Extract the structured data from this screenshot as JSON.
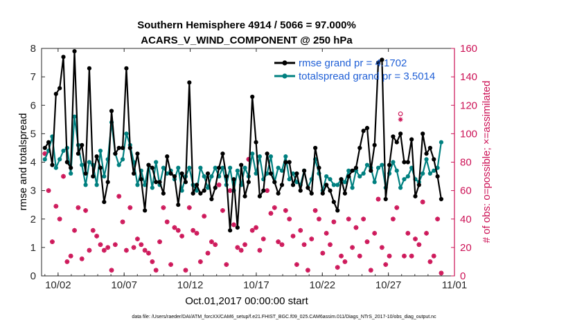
{
  "chart_data": {
    "type": "line",
    "title": "Southern Hemisphere 4914 / 5066 = 97.000%",
    "subtitle": "ACARS_V_WIND_COMPONENT @ 250 hPa",
    "xlabel": "Oct.01,2017 00:00:00 start",
    "ylabel_left": "rmse and totalspread",
    "ylabel_right": "# of obs: o=possible; ×=assimilated",
    "footnote": "data file: /Users/raeder/DAI/ATM_forcXX/CAM6_setup/f.e21.FHIST_BGC.f09_025.CAM6assim.011/Diags_NTrS_2017-10/obs_diag_output.nc",
    "x_tick_labels": [
      "10/02",
      "10/07",
      "10/12",
      "10/17",
      "10/22",
      "10/27",
      "11/01"
    ],
    "x_tick_values": [
      2,
      7,
      12,
      17,
      22,
      27,
      32
    ],
    "xlim": [
      0.75,
      32
    ],
    "ylim_left": [
      0,
      8
    ],
    "ylim_right": [
      0,
      160
    ],
    "y_ticks_left": [
      "0",
      "1",
      "2",
      "3",
      "4",
      "5",
      "6",
      "7",
      "8"
    ],
    "y_ticks_right": [
      "0",
      "20",
      "40",
      "60",
      "80",
      "100",
      "120",
      "140",
      "160"
    ],
    "legend": [
      {
        "label": "rmse grand pr = 4.1702",
        "color": "#000000"
      },
      {
        "label": "totalspread grand pr = 3.5014",
        "color": "#008080"
      }
    ],
    "colors": {
      "rmse": "#000000",
      "spread": "#008080",
      "obs": "#cc1155",
      "right_axis": "#cc1155",
      "legend_text": "#1f5fd6"
    },
    "series": [
      {
        "name": "rmse",
        "values": [
          4.5,
          4.7,
          3.9,
          6.4,
          6.6,
          7.7,
          4.0,
          3.8,
          7.9,
          4.3,
          4.6,
          3.6,
          7.3,
          3.5,
          4.2,
          3.8,
          2.6,
          3.3,
          5.8,
          4.3,
          4.5,
          4.5,
          7.3,
          4.5,
          3.6,
          4.3,
          3.4,
          2.3,
          3.9,
          3.8,
          3.3,
          3.3,
          2.9,
          4.2,
          3.6,
          3.5,
          2.5,
          3.6,
          3.3,
          6.8,
          2.9,
          3.2,
          2.9,
          3.0,
          3.6,
          2.7,
          3.1,
          3.8,
          4.3,
          3.5,
          1.6,
          3.4,
          1.7,
          3.9,
          2.8,
          3.3,
          6.3,
          4.7,
          2.8,
          3.0,
          4.3,
          3.6,
          3.3,
          2.9,
          3.2,
          4.0,
          4.0,
          3.2,
          3.6,
          3.0,
          3.7,
          3.1,
          2.9,
          4.5,
          3.8,
          2.9,
          3.2,
          3.0,
          2.6,
          2.3,
          3.4,
          2.9,
          3.5,
          3.7,
          3.8,
          4.5,
          5.1,
          5.2,
          3.7,
          4.6,
          7.5,
          7.6,
          2.7,
          3.9,
          4.9,
          4.7,
          5.0,
          4.0,
          4.0,
          4.8,
          2.8,
          3.2,
          5.0,
          4.3,
          4.5,
          4.1,
          3.5,
          2.7
        ]
      },
      {
        "name": "totalspread",
        "values": [
          4.1,
          4.4,
          4.9,
          3.8,
          4.1,
          4.4,
          4.5,
          3.6,
          5.6,
          4.6,
          3.9,
          3.2,
          4.0,
          3.9,
          3.2,
          4.4,
          3.5,
          4.1,
          5.4,
          4.3,
          3.9,
          4.1,
          5.0,
          4.6,
          4.0,
          3.2,
          3.7,
          3.2,
          3.9,
          3.1,
          4.0,
          3.2,
          3.8,
          3.6,
          3.7,
          3.4,
          3.8,
          3.0,
          3.5,
          3.8,
          3.2,
          3.0,
          3.8,
          3.5,
          3.1,
          3.5,
          3.8,
          3.5,
          3.8,
          3.2,
          3.8,
          3.0,
          3.7,
          3.2,
          3.8,
          3.5,
          4.3,
          3.6,
          4.2,
          3.4,
          3.6,
          4.2,
          3.3,
          3.8,
          3.7,
          4.2,
          3.4,
          3.6,
          3.3,
          3.2,
          3.7,
          3.1,
          3.4,
          4.1,
          3.6,
          3.0,
          3.5,
          3.4,
          3.2,
          3.2,
          3.4,
          3.3,
          3.7,
          3.1,
          3.7,
          3.5,
          3.6,
          3.9,
          3.8,
          3.3,
          3.8,
          3.9,
          3.1,
          3.6,
          4.0,
          3.7,
          3.1,
          3.4,
          3.5,
          3.8,
          3.4,
          3.3,
          3.6,
          4.1,
          3.6,
          3.7,
          3.8,
          4.7
        ]
      },
      {
        "name": "obs_possible",
        "values": [
          86,
          60,
          24,
          49,
          40,
          70,
          10,
          14,
          32,
          48,
          12,
          46,
          18,
          32,
          28,
          22,
          18,
          20,
          4,
          22,
          56,
          38,
          18,
          48,
          20,
          26,
          22,
          18,
          16,
          10,
          4,
          24,
          48,
          38,
          8,
          34,
          32,
          28,
          4,
          48,
          32,
          30,
          10,
          42,
          16,
          24,
          22,
          64,
          46,
          8,
          60,
          36,
          20,
          18,
          22,
          82,
          32,
          34,
          18,
          26,
          60,
          44,
          48,
          24,
          22,
          46,
          40,
          28,
          8,
          32,
          22,
          4,
          26,
          46,
          40,
          16,
          30,
          22,
          38,
          6,
          14,
          10,
          40,
          20,
          34,
          14,
          40,
          24,
          4,
          30,
          54,
          20,
          8,
          14,
          40,
          48,
          114,
          14,
          30,
          14,
          26,
          22,
          52,
          30,
          10,
          14,
          40,
          2
        ]
      },
      {
        "name": "obs_assimilated",
        "values": [
          86,
          60,
          24,
          49,
          40,
          70,
          10,
          14,
          32,
          48,
          12,
          46,
          18,
          32,
          28,
          22,
          18,
          20,
          4,
          22,
          56,
          38,
          18,
          48,
          20,
          26,
          22,
          18,
          16,
          10,
          4,
          24,
          48,
          38,
          8,
          34,
          32,
          28,
          4,
          48,
          32,
          30,
          10,
          42,
          16,
          24,
          22,
          64,
          46,
          8,
          60,
          36,
          20,
          18,
          22,
          82,
          32,
          34,
          18,
          26,
          60,
          44,
          48,
          24,
          22,
          46,
          40,
          28,
          8,
          32,
          22,
          4,
          26,
          46,
          40,
          16,
          30,
          22,
          38,
          6,
          14,
          10,
          40,
          20,
          34,
          14,
          40,
          24,
          4,
          30,
          54,
          20,
          8,
          14,
          40,
          48,
          110,
          14,
          30,
          14,
          26,
          22,
          52,
          30,
          10,
          14,
          40,
          2
        ]
      }
    ]
  }
}
